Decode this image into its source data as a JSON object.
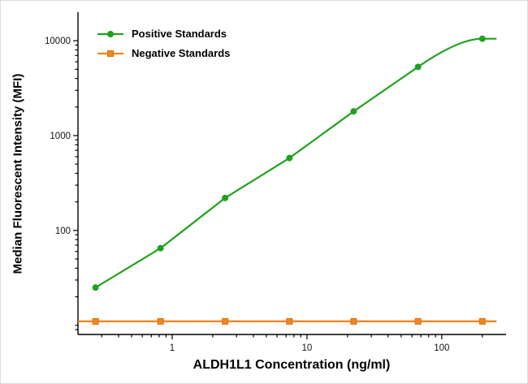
{
  "chart_data": {
    "type": "line",
    "title": "",
    "xlabel": "ALDH1L1 Concentration (ng/ml)",
    "ylabel": "Median Fluorescent Intensity (MFI)",
    "x_scale": "log",
    "y_scale": "log",
    "xlim": [
      0.2,
      300
    ],
    "ylim": [
      8,
      20000
    ],
    "x_major_ticks": [
      1,
      10,
      100
    ],
    "y_major_ticks": [
      100,
      1000,
      10000
    ],
    "grid": false,
    "legend_position": "inside-top-left",
    "x": [
      0.27,
      0.82,
      2.47,
      7.41,
      22.2,
      66.7,
      200
    ],
    "series": [
      {
        "name": "Positive Standards",
        "color": "#1fa21f",
        "marker": "circle",
        "values": [
          25,
          65,
          220,
          580,
          1800,
          5300,
          10500
        ],
        "plateau_end_x": 255
      },
      {
        "name": "Negative Standards",
        "color": "#f0861c",
        "marker": "square",
        "marker_edge_color": "#d4720e",
        "values": [
          11,
          11,
          11,
          11,
          11,
          11,
          11
        ],
        "extend_x": [
          0.2,
          255
        ]
      }
    ],
    "axis_color": "#000000",
    "tick_label_color": "#141414"
  }
}
